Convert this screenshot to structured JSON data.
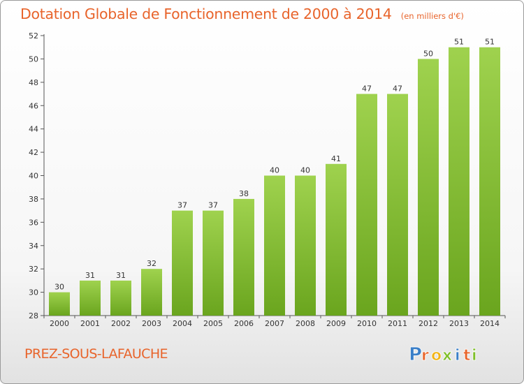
{
  "title": "Dotation Globale de Fonctionnement de 2000 à 2014",
  "subtitle": "(en milliers d'€)",
  "commune": "PREZ-SOUS-LAFAUCHE",
  "logo": {
    "text": "Proxiti",
    "colors": [
      "#3a7fc8",
      "#e8642b",
      "#f2b417",
      "#7fbf2a",
      "#3a7fc8",
      "#e8642b",
      "#7fbf2a"
    ]
  },
  "colors": {
    "bar_top": "#9fd24e",
    "bar_bottom": "#6aa51e",
    "accent": "#e8642b"
  },
  "chart_data": {
    "type": "bar",
    "categories": [
      "2000",
      "2001",
      "2002",
      "2003",
      "2004",
      "2005",
      "2006",
      "2007",
      "2008",
      "2009",
      "2010",
      "2011",
      "2012",
      "2013",
      "2014"
    ],
    "values": [
      30,
      31,
      31,
      32,
      37,
      37,
      38,
      40,
      40,
      41,
      47,
      47,
      50,
      51,
      51
    ],
    "ylim": [
      28,
      52
    ],
    "yticks": [
      28,
      30,
      32,
      34,
      36,
      38,
      40,
      42,
      44,
      46,
      48,
      50,
      52
    ],
    "grid": false
  }
}
